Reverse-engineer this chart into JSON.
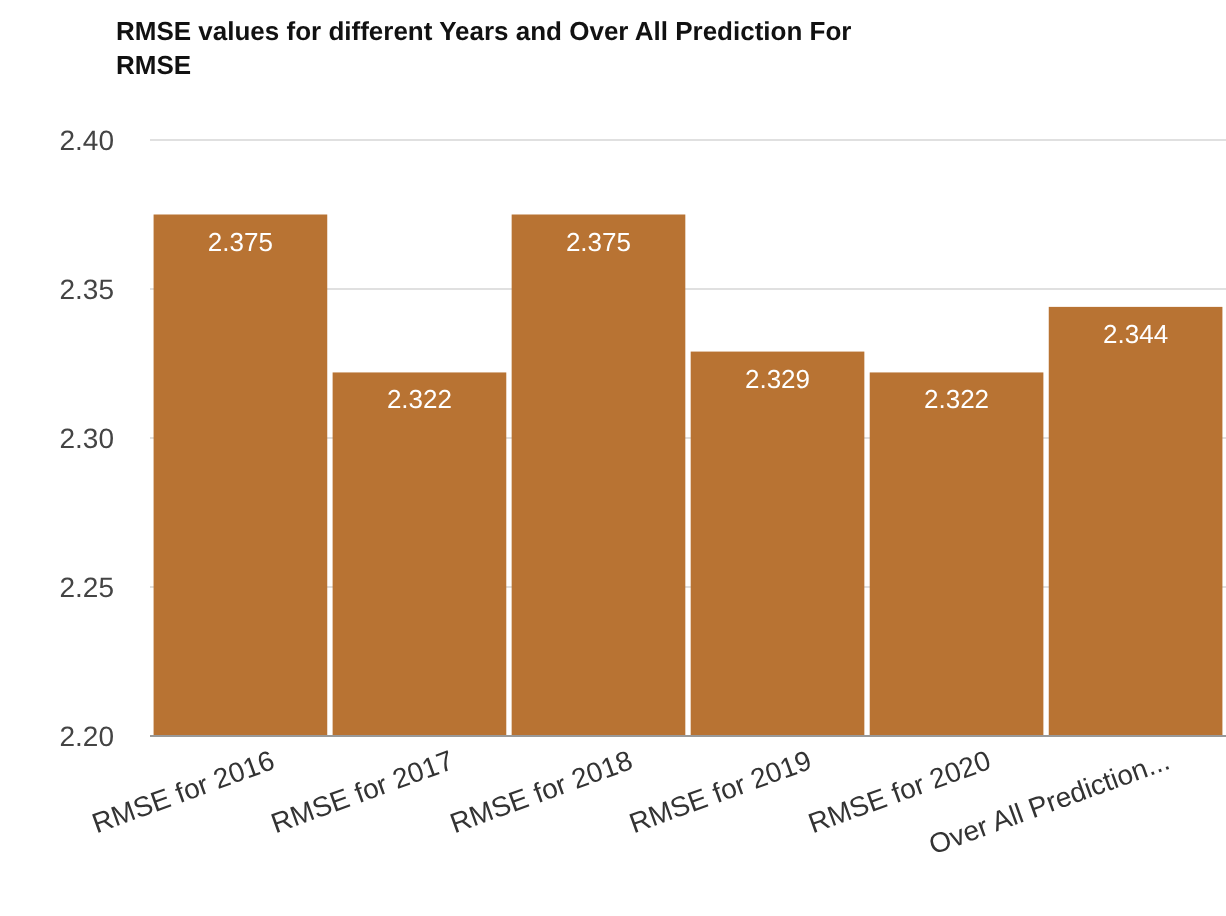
{
  "chart_data": {
    "type": "bar",
    "title": "RMSE values for different Years and Over All Prediction For RMSE",
    "categories": [
      "RMSE for 2016",
      "RMSE for 2017",
      "RMSE for 2018",
      "RMSE for 2019",
      "RMSE for 2020",
      "Over All Prediction..."
    ],
    "values": [
      2.375,
      2.322,
      2.375,
      2.329,
      2.322,
      2.344
    ],
    "color": "#b87333",
    "ylim": [
      2.2,
      2.4
    ],
    "yticks": [
      {
        "value": 2.2,
        "label": "2.20"
      },
      {
        "value": 2.25,
        "label": "2.25"
      },
      {
        "value": 2.3,
        "label": "2.30"
      },
      {
        "value": 2.35,
        "label": "2.35"
      },
      {
        "value": 2.4,
        "label": "2.40"
      }
    ],
    "grid": "y",
    "data_labels": true
  }
}
